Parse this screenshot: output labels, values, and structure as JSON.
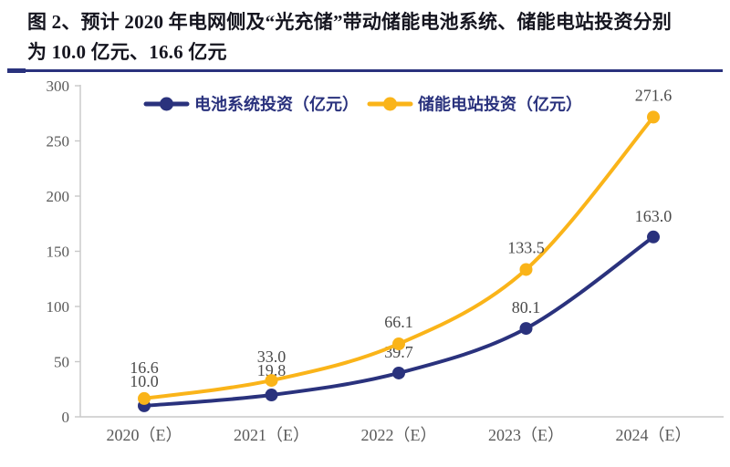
{
  "figure": {
    "title_line1": "图 2、预计 2020 年电网侧及“光充储”带动储能电池系统、储能电站投资分别",
    "title_line2": "为 10.0 亿元、16.6 亿元"
  },
  "colors": {
    "accent_navy": "#2A327D",
    "accent_gold": "#FAB419",
    "axis": "#C8C8C8",
    "tick_label": "#595959",
    "value_label": "#4A4A4A",
    "legend_text": "#2A327D",
    "title_text": "#15151F",
    "background": "#FFFFFF"
  },
  "chart_data": {
    "type": "line",
    "title": "",
    "xlabel": "",
    "ylabel": "",
    "categories": [
      "2020（E）",
      "2021（E）",
      "2022（E）",
      "2023（E）",
      "2024（E）"
    ],
    "series": [
      {
        "key": "battery-system",
        "name": "电池系统投资（亿元）",
        "color": "#2A327D",
        "values": [
          10.0,
          19.8,
          39.7,
          80.1,
          163.0
        ]
      },
      {
        "key": "storage-station",
        "name": "储能电站投资（亿元）",
        "color": "#FAB419",
        "values": [
          16.6,
          33.0,
          66.1,
          133.5,
          271.6
        ]
      }
    ],
    "y_ticks": [
      0,
      50,
      100,
      150,
      200,
      250,
      300
    ],
    "ylim": [
      0,
      300
    ],
    "grid": false,
    "legend_position": "top-center",
    "value_labels": true,
    "value_label_format": "one-decimal",
    "line_style": "smooth",
    "marker": "circle"
  }
}
